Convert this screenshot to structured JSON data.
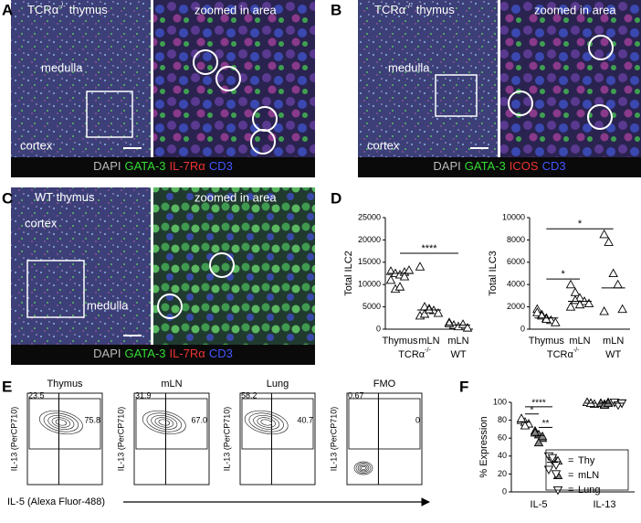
{
  "panels": [
    {
      "label": "A",
      "title": "TCRα",
      "title_superscript": "-/-",
      "title_end": "thymus",
      "zoom_title": "zoomed in area",
      "regions": [
        "medulla",
        "cortex"
      ],
      "stains": [
        {
          "text": "DAPI",
          "color": "#bbbbbb"
        },
        {
          "text": "GATA-3",
          "color": "#33dd33"
        },
        {
          "text": "IL-7Rα",
          "color": "#ee3333"
        },
        {
          "text": "CD3",
          "color": "#4455ff"
        }
      ]
    },
    {
      "label": "B",
      "title": "TCRα",
      "title_superscript": "-/-",
      "title_end": "thymus",
      "zoom_title": "zoomed in area",
      "regions": [
        "medulla",
        "cortex"
      ],
      "stains": [
        {
          "text": "DAPI",
          "color": "#bbbbbb"
        },
        {
          "text": "GATA-3",
          "color": "#33dd33"
        },
        {
          "text": "ICOS",
          "color": "#ee3333"
        },
        {
          "text": "CD3",
          "color": "#4455ff"
        }
      ]
    },
    {
      "label": "C",
      "title": "WT thymus",
      "zoom_title": "zoomed in area",
      "regions": [
        "cortex",
        "medulla"
      ],
      "stains": [
        {
          "text": "DAPI",
          "color": "#bbbbbb"
        },
        {
          "text": "GATA-3",
          "color": "#33dd33"
        },
        {
          "text": "IL-7Rα",
          "color": "#ee3333"
        },
        {
          "text": "CD3",
          "color": "#4455ff"
        }
      ]
    }
  ],
  "panel_D_label": "D",
  "panel_E_label": "E",
  "panel_F_label": "F",
  "chart_data": [
    {
      "type": "scatter",
      "y_label": "Total ILC2",
      "categories": [
        "Thymus",
        "mLN",
        "mLN"
      ],
      "group_labels": [
        {
          "text": "TCRα",
          "superscript": "-/-"
        },
        {
          "text": "WT"
        }
      ],
      "values": [
        [
          13000,
          12500,
          12200,
          12800,
          13200,
          11000,
          9000,
          9500,
          11800
        ],
        [
          14000,
          5000,
          4600,
          4200,
          3600,
          3000,
          3400,
          4400
        ],
        [
          1500,
          900,
          600,
          1100,
          300,
          1300
        ]
      ],
      "medians": [
        12500,
        4300,
        900
      ],
      "ylim": [
        0,
        25000
      ],
      "yticks": [
        0,
        5000,
        10000,
        15000,
        20000,
        25000
      ],
      "significance": [
        {
          "text": "****",
          "from": 0,
          "to": 2,
          "y": 17000
        }
      ]
    },
    {
      "type": "scatter",
      "y_label": "Total ILC3",
      "categories": [
        "Thymus",
        "mLN",
        "mLN"
      ],
      "group_labels": [
        {
          "text": "TCRα",
          "superscript": "-/-"
        },
        {
          "text": "WT"
        }
      ],
      "values": [
        [
          1800,
          1300,
          1000,
          800,
          600,
          1500,
          1200,
          900
        ],
        [
          4000,
          3300,
          2800,
          2500,
          2300,
          2000,
          2600,
          2200
        ],
        [
          8500,
          7800,
          5000,
          4000,
          1800,
          1600
        ]
      ],
      "medians": [
        1000,
        2500,
        3700
      ],
      "ylim": [
        0,
        10000
      ],
      "yticks": [
        0,
        2000,
        4000,
        6000,
        8000,
        10000
      ],
      "significance": [
        {
          "text": "*",
          "from": 0,
          "to": 1,
          "y": 4500
        },
        {
          "text": "*",
          "from": 0,
          "to": 2,
          "y": 9000
        }
      ]
    },
    {
      "type": "grouped-scatter",
      "y_label": "% Expression",
      "categories": [
        "IL-5",
        "IL-13"
      ],
      "legend_separator": "=",
      "series": [
        {
          "name": "Thy",
          "marker": "triangle-up",
          "color": "#ffffff",
          "values": [
            [
              80,
              78,
              76,
              82,
              74
            ],
            [
              100,
              99,
              98,
              100,
              99
            ]
          ],
          "medians": [
            78,
            99
          ]
        },
        {
          "name": "mLN",
          "marker": "triangle-up",
          "color": "#888888",
          "values": [
            [
              68,
              64,
              60,
              66,
              55,
              62
            ],
            [
              99,
              98,
              100,
              99,
              97,
              99
            ]
          ],
          "medians": [
            63,
            99
          ]
        },
        {
          "name": "Lung",
          "marker": "triangle-down",
          "color": "#ffffff",
          "values": [
            [
              40,
              35,
              30,
              25,
              38,
              20
            ],
            [
              100,
              98,
              99,
              100,
              97,
              99
            ]
          ],
          "medians": [
            33,
            99
          ]
        }
      ],
      "ylim": [
        0,
        100
      ],
      "yticks": [
        0,
        20,
        40,
        60,
        80,
        100
      ],
      "significance": [
        {
          "text": "****",
          "from": 0,
          "to": 2,
          "y": 95
        },
        {
          "text": "*",
          "from": 0,
          "to": 1,
          "y": 87
        },
        {
          "text": "**",
          "from": 1,
          "to": 2,
          "y": 72
        }
      ]
    }
  ],
  "flow": {
    "y_label": "IL-13 (PerCP710)",
    "x_label": "IL-5 (Alexa Fluor-488)",
    "plots": [
      {
        "title": "Thymus",
        "upper_left": "23.5",
        "upper_right": "75.8"
      },
      {
        "title": "mLN",
        "upper_left": "31.9",
        "upper_right": "67.0"
      },
      {
        "title": "Lung",
        "upper_left": "58.2",
        "upper_right": "40.7"
      },
      {
        "title": "FMO",
        "upper_left": "0.67",
        "upper_right": "0"
      }
    ]
  }
}
